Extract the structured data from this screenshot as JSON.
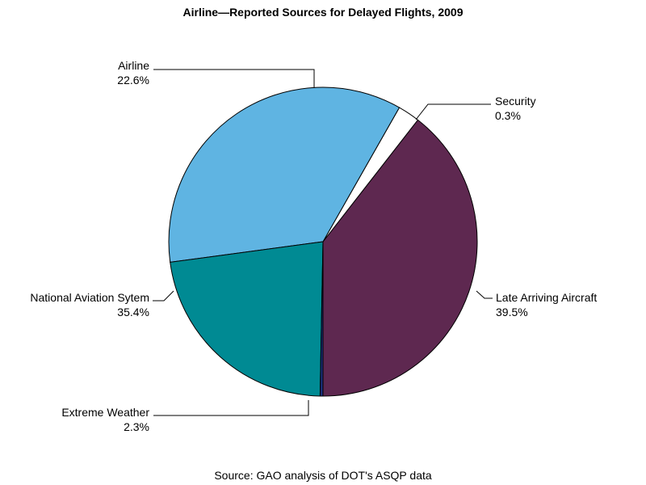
{
  "chart_data": {
    "type": "pie",
    "title": "Airline—Reported Sources for Delayed Flights, 2009",
    "footnote": "Source: GAO analysis of DOT's ASQP data",
    "slices": [
      {
        "label": "Late Arriving Aircraft",
        "value": 39.5,
        "value_label": "39.5%",
        "color": "#5e2850"
      },
      {
        "label": "Extreme Weather",
        "value": 2.3,
        "value_label": "2.3%",
        "color": "#ffffff"
      },
      {
        "label": "National Aviation Sytem",
        "value": 35.4,
        "value_label": "35.4%",
        "color": "#5fb4e2"
      },
      {
        "label": "Airline",
        "value": 22.6,
        "value_label": "22.6%",
        "color": "#008a93"
      },
      {
        "label": "Security",
        "value": 0.3,
        "value_label": "0.3%",
        "color": "#1a2f7c"
      }
    ],
    "start_position": "bottom",
    "direction": "clockwise",
    "legend": "none"
  }
}
